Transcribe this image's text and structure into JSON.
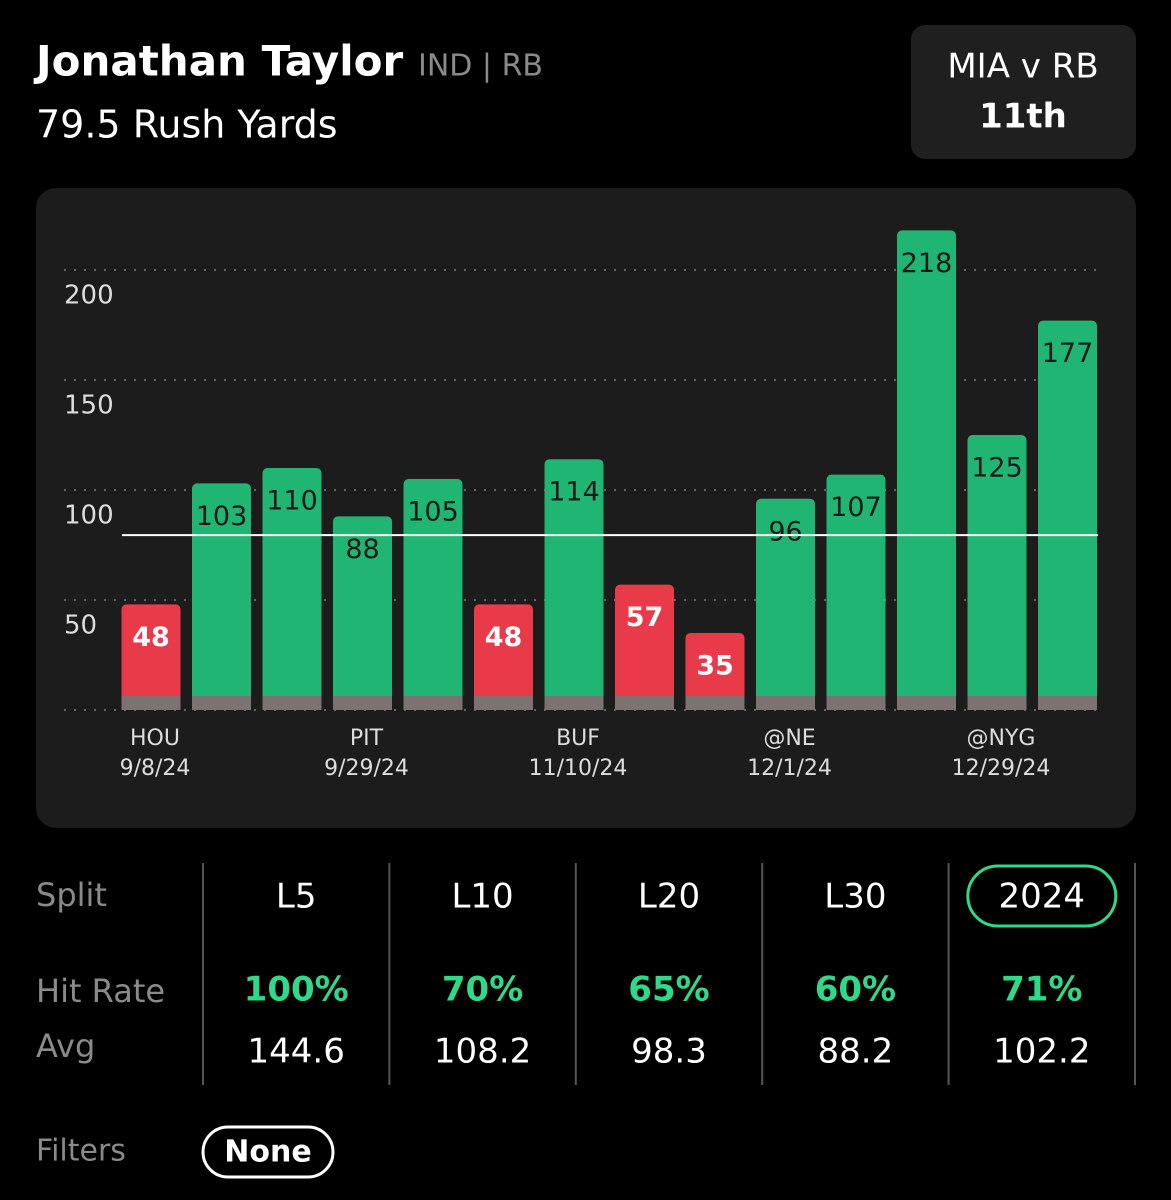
{
  "header": {
    "name": "Jonathan Taylor",
    "team_pos": "IND | RB",
    "subtitle": "79.5 Rush Yards"
  },
  "badge": {
    "line1": "MIA v RB",
    "line2": "11th"
  },
  "chart_data": {
    "type": "bar",
    "categories": [
      "HOU",
      null,
      null,
      "PIT",
      null,
      null,
      "BUF",
      null,
      null,
      "@NE",
      null,
      null,
      "@NYG",
      null
    ],
    "dates": [
      "9/8/24",
      null,
      null,
      "9/29/24",
      null,
      null,
      "11/10/24",
      null,
      null,
      "12/1/24",
      null,
      null,
      "12/29/24",
      null
    ],
    "values": [
      48,
      103,
      110,
      88,
      105,
      48,
      114,
      57,
      35,
      96,
      107,
      218,
      125,
      177
    ],
    "threshold": 79.5,
    "over_color": "#21b573",
    "under_color": "#e83a49",
    "ylim": [
      0,
      225
    ],
    "yticks": [
      50,
      100,
      150,
      200
    ],
    "grid": true
  },
  "splits": {
    "row_labels": {
      "split": "Split",
      "hit_rate": "Hit Rate",
      "avg": "Avg"
    },
    "columns": [
      {
        "name": "L5",
        "hit_rate": "100%",
        "avg": "144.6"
      },
      {
        "name": "L10",
        "hit_rate": "70%",
        "avg": "108.2"
      },
      {
        "name": "L20",
        "hit_rate": "65%",
        "avg": "98.3"
      },
      {
        "name": "L30",
        "hit_rate": "60%",
        "avg": "88.2"
      },
      {
        "name": "2024",
        "hit_rate": "71%",
        "avg": "102.2",
        "selected": true
      }
    ]
  },
  "filters": {
    "label": "Filters",
    "value": "None"
  }
}
